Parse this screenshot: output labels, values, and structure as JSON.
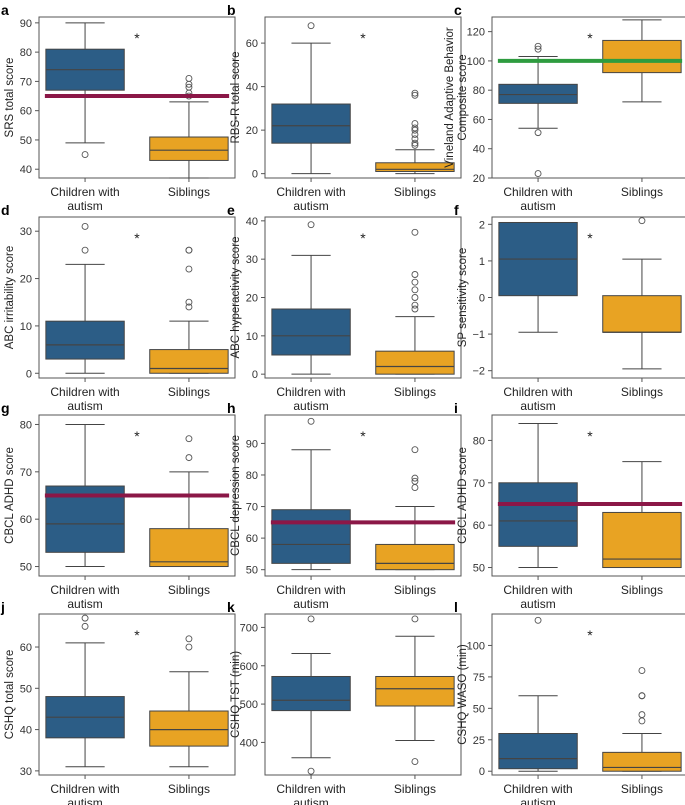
{
  "colors": {
    "children": "#2c5d86",
    "siblings": "#e8a323",
    "refline_red": "#8b1747",
    "refline_green": "#2e9c3f",
    "median": "#444444"
  },
  "categories": [
    "Children with\nautism",
    "Siblings"
  ],
  "chart_data": [
    {
      "label": "a",
      "type": "box",
      "ylabel": "SRS total score",
      "ylim": [
        37,
        92
      ],
      "yticks": [
        40,
        50,
        60,
        70,
        80,
        90
      ],
      "sig": "*",
      "refline": 65,
      "refline_color": "red",
      "boxes": [
        {
          "name": "Children with autism",
          "whislo": 49,
          "q1": 67,
          "med": 74,
          "q3": 81,
          "whishi": 90,
          "fliers": [
            45
          ]
        },
        {
          "name": "Siblings",
          "whislo": 37,
          "q1": 43,
          "med": 46.5,
          "q3": 51,
          "whishi": 63,
          "fliers": [
            65,
            66,
            68,
            69,
            71
          ]
        }
      ]
    },
    {
      "label": "b",
      "type": "box",
      "ylabel": "RBS-R total score",
      "ylim": [
        -2,
        72
      ],
      "yticks": [
        0,
        20,
        40,
        60
      ],
      "sig": "*",
      "refline": null,
      "boxes": [
        {
          "name": "Children with autism",
          "whislo": 0,
          "q1": 14,
          "med": 22,
          "q3": 32,
          "whishi": 60,
          "fliers": [
            68
          ]
        },
        {
          "name": "Siblings",
          "whislo": 0,
          "q1": 1,
          "med": 2,
          "q3": 5,
          "whishi": 11,
          "fliers": [
            13,
            14,
            16,
            18,
            20,
            21,
            23,
            36,
            37
          ]
        }
      ]
    },
    {
      "label": "c",
      "type": "box",
      "ylabel": "Vineland Adaptive Behavior\nComposite score",
      "ylim": [
        20,
        130
      ],
      "yticks": [
        20,
        40,
        60,
        80,
        100,
        120
      ],
      "sig": "*",
      "refline": 100,
      "refline_color": "green",
      "boxes": [
        {
          "name": "Children with autism",
          "whislo": 54,
          "q1": 71,
          "med": 77,
          "q3": 84,
          "whishi": 103,
          "fliers": [
            23,
            51,
            108,
            110
          ]
        },
        {
          "name": "Siblings",
          "whislo": 72,
          "q1": 92,
          "med": 100,
          "q3": 114,
          "whishi": 128,
          "fliers": []
        }
      ]
    },
    {
      "label": "d",
      "type": "box",
      "ylabel": "ABC irritability score",
      "ylim": [
        -1,
        33
      ],
      "yticks": [
        0,
        10,
        20,
        30
      ],
      "sig": "*",
      "refline": null,
      "boxes": [
        {
          "name": "Children with autism",
          "whislo": 0,
          "q1": 3,
          "med": 6,
          "q3": 11,
          "whishi": 23,
          "fliers": [
            26,
            31
          ]
        },
        {
          "name": "Siblings",
          "whislo": 0,
          "q1": 0,
          "med": 1,
          "q3": 5,
          "whishi": 11,
          "fliers": [
            14,
            15,
            22,
            26,
            26
          ]
        }
      ]
    },
    {
      "label": "e",
      "type": "box",
      "ylabel": "ABC hyperactivity score",
      "ylim": [
        -1,
        41
      ],
      "yticks": [
        0,
        10,
        20,
        30,
        40
      ],
      "sig": "*",
      "refline": null,
      "boxes": [
        {
          "name": "Children with autism",
          "whislo": 0,
          "q1": 5,
          "med": 10,
          "q3": 17,
          "whishi": 31,
          "fliers": [
            39
          ]
        },
        {
          "name": "Siblings",
          "whislo": 0,
          "q1": 0,
          "med": 2,
          "q3": 6,
          "whishi": 15,
          "fliers": [
            17,
            18,
            20,
            22,
            24,
            26,
            37
          ]
        }
      ]
    },
    {
      "label": "f",
      "type": "box",
      "ylabel": "SP sensitivity score",
      "ylim": [
        -2.2,
        2.2
      ],
      "yticks": [
        -2,
        -1,
        0,
        1,
        2
      ],
      "sig": "*",
      "refline": null,
      "boxes": [
        {
          "name": "Children with autism",
          "whislo": -0.95,
          "q1": 0.05,
          "med": 1.05,
          "q3": 2.05,
          "whishi": 2.05,
          "fliers": []
        },
        {
          "name": "Siblings",
          "whislo": -1.95,
          "q1": -0.95,
          "med": -0.95,
          "q3": 0.05,
          "whishi": 1.05,
          "fliers": [
            2.1
          ]
        }
      ]
    },
    {
      "label": "g",
      "type": "box",
      "ylabel": "CBCL ADHD score",
      "ylim": [
        48,
        82
      ],
      "yticks": [
        50,
        60,
        70,
        80
      ],
      "sig": "*",
      "refline": 65,
      "refline_color": "red",
      "boxes": [
        {
          "name": "Children with autism",
          "whislo": 50,
          "q1": 53,
          "med": 59,
          "q3": 67,
          "whishi": 80,
          "fliers": []
        },
        {
          "name": "Siblings",
          "whislo": 50,
          "q1": 50,
          "med": 51,
          "q3": 58,
          "whishi": 70,
          "fliers": [
            73,
            77
          ]
        }
      ]
    },
    {
      "label": "h",
      "type": "box",
      "ylabel": "CBCL depression score",
      "ylim": [
        48,
        99
      ],
      "yticks": [
        50,
        60,
        70,
        80,
        90
      ],
      "sig": "*",
      "refline": 65,
      "refline_color": "red",
      "boxes": [
        {
          "name": "Children with autism",
          "whislo": 50,
          "q1": 52,
          "med": 58,
          "q3": 69,
          "whishi": 88,
          "fliers": [
            97
          ]
        },
        {
          "name": "Siblings",
          "whislo": 50,
          "q1": 50,
          "med": 52,
          "q3": 58,
          "whishi": 70,
          "fliers": [
            76,
            78,
            79,
            88
          ]
        }
      ]
    },
    {
      "label": "i",
      "type": "box",
      "ylabel": "CBCL ADHD score",
      "ylim": [
        48,
        86
      ],
      "yticks": [
        50,
        60,
        70,
        80
      ],
      "sig": "*",
      "refline": 65,
      "refline_color": "red",
      "boxes": [
        {
          "name": "Children with autism",
          "whislo": 50,
          "q1": 55,
          "med": 61,
          "q3": 70,
          "whishi": 84,
          "fliers": []
        },
        {
          "name": "Siblings",
          "whislo": 50,
          "q1": 50,
          "med": 52,
          "q3": 63,
          "whishi": 75,
          "fliers": []
        }
      ]
    },
    {
      "label": "j",
      "type": "box",
      "ylabel": "CSHQ total score",
      "ylim": [
        29,
        68
      ],
      "yticks": [
        30,
        40,
        50,
        60
      ],
      "sig": "*",
      "refline": null,
      "boxes": [
        {
          "name": "Children with autism",
          "whislo": 31,
          "q1": 38,
          "med": 43,
          "q3": 48,
          "whishi": 61,
          "fliers": [
            65,
            67
          ]
        },
        {
          "name": "Siblings",
          "whislo": 31,
          "q1": 36,
          "med": 40,
          "q3": 44.5,
          "whishi": 54,
          "fliers": [
            60,
            62
          ]
        }
      ]
    },
    {
      "label": "k",
      "type": "box",
      "ylabel": "CSHQ TST (min)",
      "ylim": [
        315,
        735
      ],
      "yticks": [
        400,
        500,
        600,
        700
      ],
      "sig": "",
      "refline": null,
      "boxes": [
        {
          "name": "Children with autism",
          "whislo": 360,
          "q1": 483,
          "med": 510,
          "q3": 572,
          "whishi": 632,
          "fliers": [
            325,
            722
          ]
        },
        {
          "name": "Siblings",
          "whislo": 405,
          "q1": 495,
          "med": 540,
          "q3": 572,
          "whishi": 677,
          "fliers": [
            350,
            722
          ]
        }
      ]
    },
    {
      "label": "l",
      "type": "box",
      "ylabel": "CSHQ WASO (min)",
      "ylim": [
        -3,
        125
      ],
      "yticks": [
        0,
        25,
        50,
        75,
        100
      ],
      "sig": "*",
      "refline": null,
      "boxes": [
        {
          "name": "Children with autism",
          "whislo": 0,
          "q1": 2,
          "med": 10,
          "q3": 30,
          "whishi": 60,
          "fliers": [
            120
          ]
        },
        {
          "name": "Siblings",
          "whislo": 0,
          "q1": 0,
          "med": 3,
          "q3": 15,
          "whishi": 30,
          "fliers": [
            40,
            45,
            60,
            60,
            80
          ]
        }
      ]
    }
  ]
}
